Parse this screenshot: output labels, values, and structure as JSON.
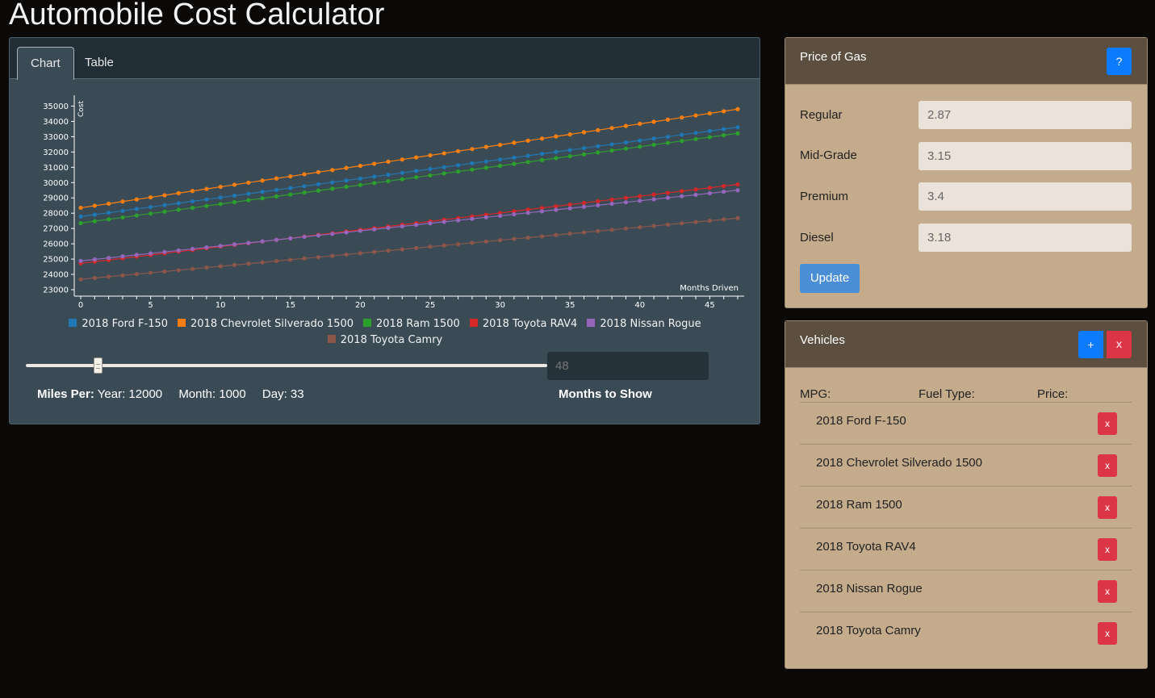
{
  "app": {
    "title": "Automobile Cost Calculator"
  },
  "tabs": [
    {
      "label": "Chart",
      "active": true
    },
    {
      "label": "Table",
      "active": false
    }
  ],
  "chart_data": {
    "type": "line",
    "xlabel": "Months Driven",
    "ylabel": "Cost",
    "xlim": [
      0,
      47
    ],
    "ylim": [
      23000,
      35500
    ],
    "x_ticks": [
      0,
      5,
      10,
      15,
      20,
      25,
      30,
      35,
      40,
      45
    ],
    "y_ticks": [
      23000,
      24000,
      25000,
      26000,
      27000,
      28000,
      29000,
      30000,
      31000,
      32000,
      33000,
      34000,
      35000
    ],
    "points_per_series": 48,
    "series": [
      {
        "name": "2018 Ford F-150",
        "color": "#1f77b4",
        "start": 27780,
        "end": 33620
      },
      {
        "name": "2018 Chevrolet Silverado 1500",
        "color": "#ff7f0e",
        "start": 28350,
        "end": 34800
      },
      {
        "name": "2018 Ram 1500",
        "color": "#2ca02c",
        "start": 27350,
        "end": 33220
      },
      {
        "name": "2018 Toyota RAV4",
        "color": "#d62728",
        "start": 24720,
        "end": 29880
      },
      {
        "name": "2018 Nissan Rogue",
        "color": "#9467bd",
        "start": 24880,
        "end": 29500
      },
      {
        "name": "2018 Toyota Camry",
        "color": "#8c564b",
        "start": 23680,
        "end": 27680
      }
    ]
  },
  "slider": {
    "months_value": "48",
    "label": "Months to Show"
  },
  "miles": {
    "label": "Miles Per:",
    "year": "Year: 12000",
    "month": "Month: 1000",
    "day": "Day: 33"
  },
  "gas": {
    "title": "Price of Gas",
    "help_label": "?",
    "rows": [
      {
        "label": "Regular",
        "value": "2.87"
      },
      {
        "label": "Mid-Grade",
        "value": "3.15"
      },
      {
        "label": "Premium",
        "value": "3.4"
      },
      {
        "label": "Diesel",
        "value": "3.18"
      }
    ],
    "update_label": "Update"
  },
  "vehicles": {
    "title": "Vehicles",
    "add_label": "+",
    "close_label": "x",
    "columns": [
      "MPG:",
      "Fuel Type:",
      "Price:"
    ],
    "delete_label": "x",
    "items": [
      "2018 Ford F-150",
      "2018 Chevrolet Silverado 1500",
      "2018 Ram 1500",
      "2018 Toyota RAV4",
      "2018 Nissan Rogue",
      "2018 Toyota Camry"
    ]
  }
}
